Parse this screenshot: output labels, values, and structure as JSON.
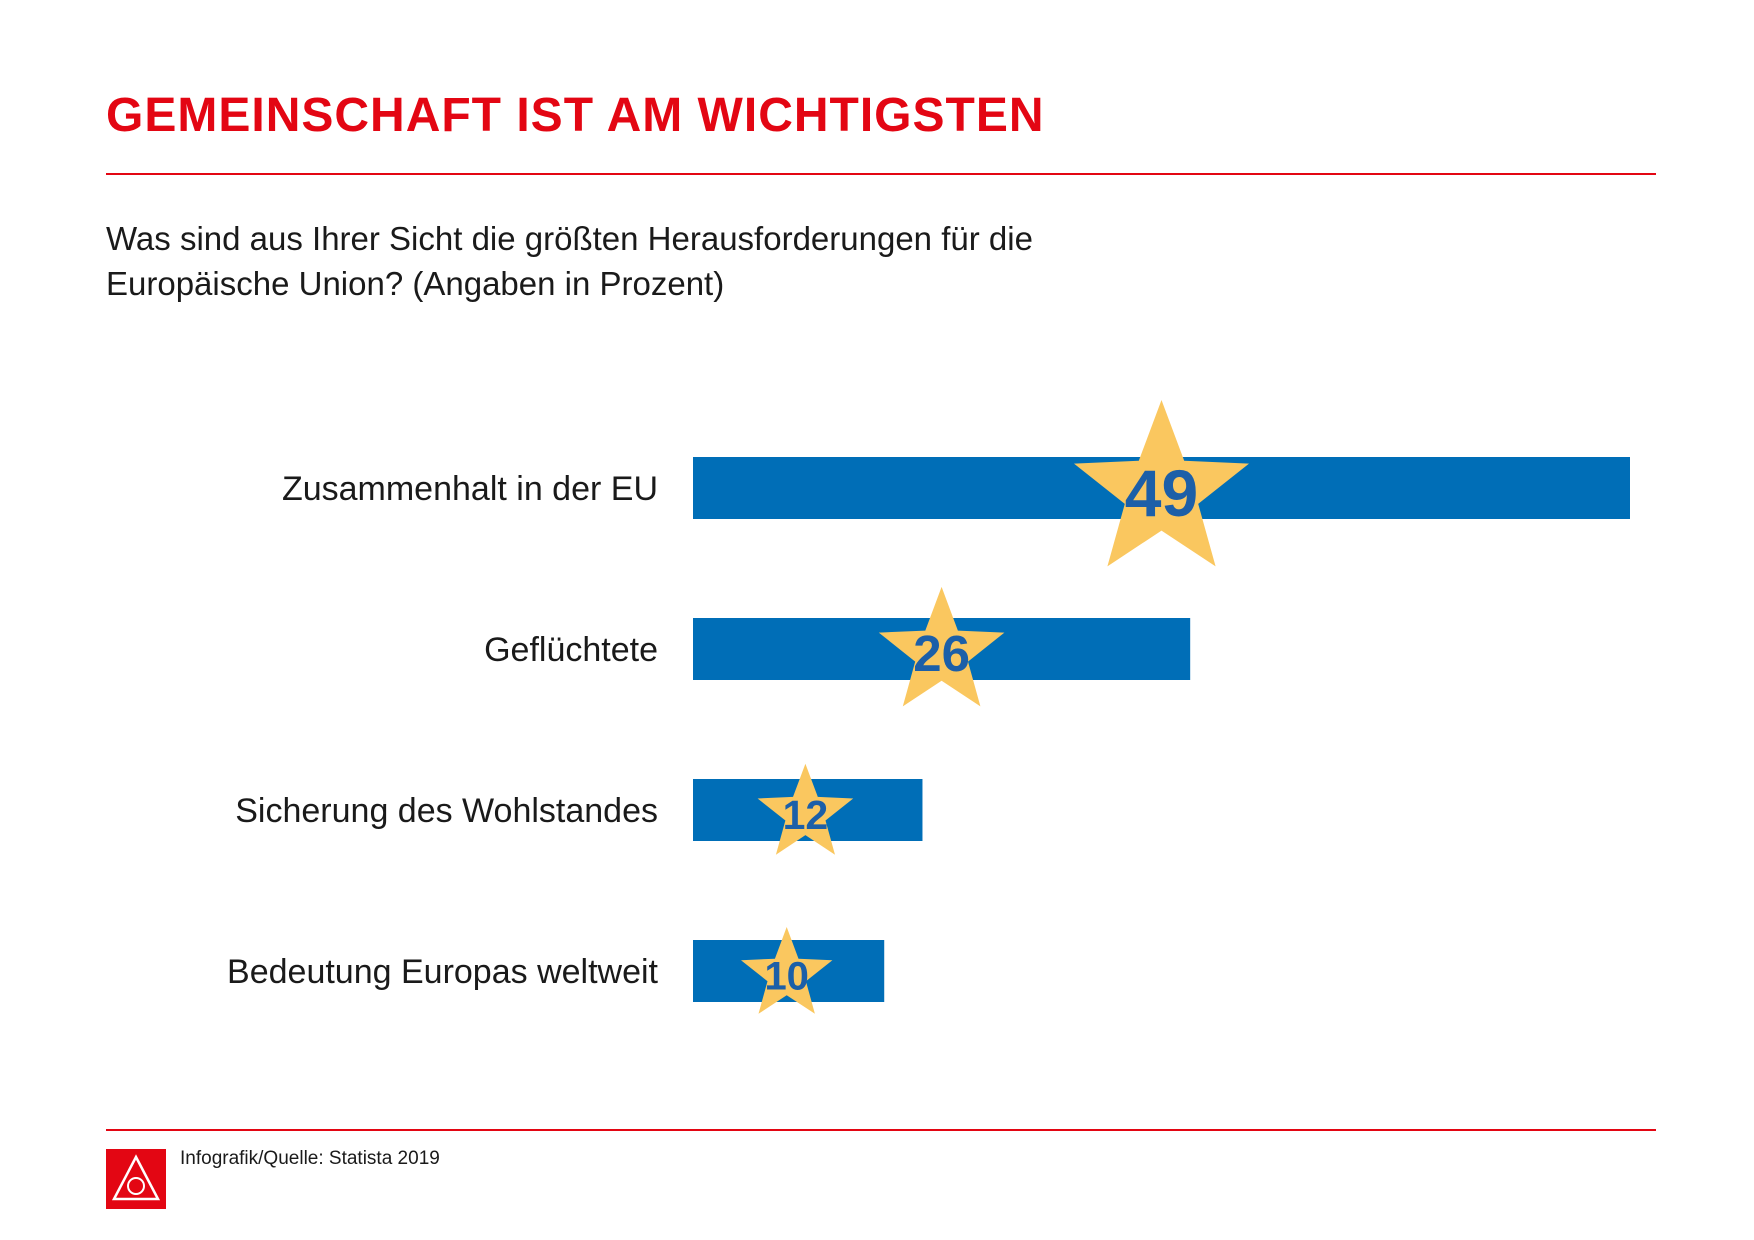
{
  "header": {
    "title": "GEMEINSCHAFT IST AM WICHTIGSTEN",
    "subtitle_line1": "Was sind aus Ihrer Sicht die größten Herausforderungen für die",
    "subtitle_line2": "Europäische Union? (Angaben in Prozent)"
  },
  "footer": {
    "source": "Infografik/Quelle: Statista 2019",
    "logo_letters": "IGM"
  },
  "colors": {
    "accent_red": "#e30613",
    "bar_blue": "#006eb7",
    "star_yellow": "#fac75f",
    "value_text": "#1c5fa8"
  },
  "chart_data": {
    "type": "bar",
    "orientation": "horizontal",
    "categories": [
      "Zusammenhalt in der EU",
      "Geflüchtete",
      "Sicherung des Wohlstandes",
      "Bedeutung Europas weltweit"
    ],
    "values": [
      49,
      26,
      12,
      10
    ],
    "value_labels": [
      "49",
      "26",
      "12",
      "10"
    ],
    "title": "GEMEINSCHAFT IST AM WICHTIGSTEN",
    "xlabel": "",
    "ylabel": "",
    "unit": "Prozent",
    "xlim": [
      0,
      49
    ],
    "grid": false,
    "value_marker": "star-icon"
  }
}
